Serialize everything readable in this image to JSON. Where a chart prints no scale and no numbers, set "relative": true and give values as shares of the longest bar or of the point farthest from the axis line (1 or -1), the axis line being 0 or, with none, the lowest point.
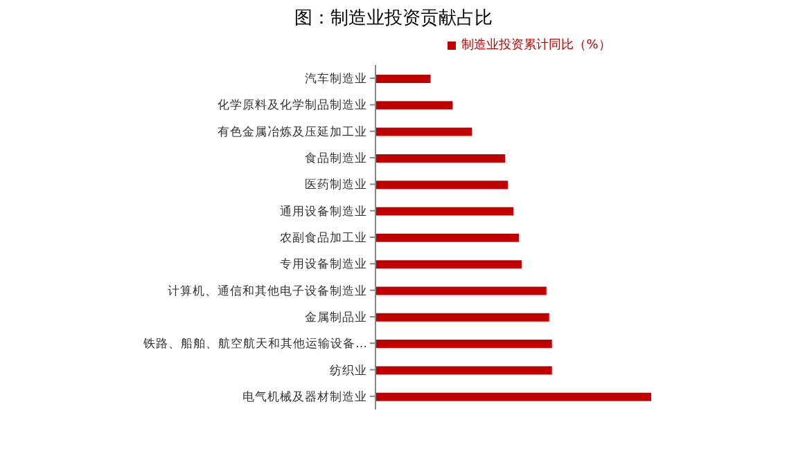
{
  "chart_data": {
    "type": "bar",
    "orientation": "horizontal",
    "relative": true,
    "title": "图：制造业投资贡献占比",
    "categories": [
      "汽车制造业",
      "化学原料及化学制品制造业",
      "有色金属冶炼及压延加工业",
      "食品制造业",
      "医药制造业",
      "通用设备制造业",
      "农副食品加工业",
      "专用设备制造业",
      "计算机、通信和其他电子设备制造业",
      "金属制品业",
      "铁路、船舶、航空航天和其他运输设备…",
      "纺织业",
      "电气机械及器材制造业"
    ],
    "series": [
      {
        "name": "制造业投资累计同比（%）",
        "color": "#c00000",
        "values": [
          0.2,
          0.28,
          0.35,
          0.47,
          0.48,
          0.5,
          0.52,
          0.53,
          0.62,
          0.63,
          0.64,
          0.64,
          1
        ]
      }
    ],
    "legend": "top",
    "grid": false
  }
}
